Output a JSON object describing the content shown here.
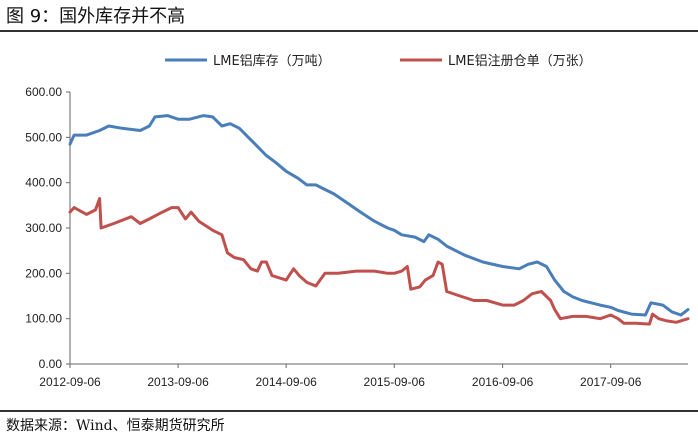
{
  "title": "图 9：国外库存并不高",
  "source": "数据来源：Wind、恒泰期货研究所",
  "chart_data": {
    "type": "line",
    "xlabel": "",
    "ylabel": "",
    "ylim": [
      0,
      600
    ],
    "yticks": [
      "0.00",
      "100.00",
      "200.00",
      "300.00",
      "400.00",
      "500.00",
      "600.00"
    ],
    "xticks": [
      "2012-09-06",
      "2013-09-06",
      "2014-09-06",
      "2015-09-06",
      "2016-09-06",
      "2017-09-06"
    ],
    "legend_position": "top",
    "grid": false,
    "series": [
      {
        "name": "LME铝库存（万吨）",
        "color": "#4a7ebb",
        "points": [
          [
            "2012-09-06",
            485
          ],
          [
            "2012-09-20",
            505
          ],
          [
            "2012-11-01",
            505
          ],
          [
            "2012-12-15",
            515
          ],
          [
            "2013-01-15",
            525
          ],
          [
            "2013-03-01",
            520
          ],
          [
            "2013-05-01",
            515
          ],
          [
            "2013-06-01",
            525
          ],
          [
            "2013-06-20",
            545
          ],
          [
            "2013-08-01",
            548
          ],
          [
            "2013-09-06",
            540
          ],
          [
            "2013-10-15",
            540
          ],
          [
            "2013-12-01",
            548
          ],
          [
            "2014-01-01",
            545
          ],
          [
            "2014-02-01",
            525
          ],
          [
            "2014-03-01",
            530
          ],
          [
            "2014-04-01",
            520
          ],
          [
            "2014-05-01",
            500
          ],
          [
            "2014-06-01",
            480
          ],
          [
            "2014-07-01",
            460
          ],
          [
            "2014-08-01",
            445
          ],
          [
            "2014-09-06",
            425
          ],
          [
            "2014-10-15",
            410
          ],
          [
            "2014-11-15",
            395
          ],
          [
            "2014-12-15",
            395
          ],
          [
            "2015-01-15",
            385
          ],
          [
            "2015-02-15",
            375
          ],
          [
            "2015-04-01",
            355
          ],
          [
            "2015-05-15",
            335
          ],
          [
            "2015-07-01",
            315
          ],
          [
            "2015-08-15",
            300
          ],
          [
            "2015-09-06",
            295
          ],
          [
            "2015-10-01",
            285
          ],
          [
            "2015-11-15",
            280
          ],
          [
            "2015-12-15",
            270
          ],
          [
            "2016-01-01",
            285
          ],
          [
            "2016-02-01",
            275
          ],
          [
            "2016-03-01",
            260
          ],
          [
            "2016-05-01",
            240
          ],
          [
            "2016-07-01",
            225
          ],
          [
            "2016-09-06",
            215
          ],
          [
            "2016-11-01",
            210
          ],
          [
            "2016-12-01",
            220
          ],
          [
            "2017-01-01",
            225
          ],
          [
            "2017-02-01",
            215
          ],
          [
            "2017-03-01",
            185
          ],
          [
            "2017-04-01",
            160
          ],
          [
            "2017-05-01",
            148
          ],
          [
            "2017-06-01",
            140
          ],
          [
            "2017-08-01",
            130
          ],
          [
            "2017-09-06",
            125
          ],
          [
            "2017-10-01",
            118
          ],
          [
            "2017-11-15",
            110
          ],
          [
            "2018-01-01",
            108
          ],
          [
            "2018-01-20",
            135
          ],
          [
            "2018-03-01",
            130
          ],
          [
            "2018-04-01",
            115
          ],
          [
            "2018-05-01",
            108
          ],
          [
            "2018-05-25",
            120
          ]
        ]
      },
      {
        "name": "LME铝注册仓单（万张）",
        "color": "#c0504d",
        "points": [
          [
            "2012-09-06",
            335
          ],
          [
            "2012-09-20",
            345
          ],
          [
            "2012-11-01",
            330
          ],
          [
            "2012-12-01",
            340
          ],
          [
            "2012-12-15",
            365
          ],
          [
            "2012-12-20",
            300
          ],
          [
            "2013-02-01",
            310
          ],
          [
            "2013-04-01",
            325
          ],
          [
            "2013-05-01",
            310
          ],
          [
            "2013-06-01",
            320
          ],
          [
            "2013-07-15",
            335
          ],
          [
            "2013-08-15",
            345
          ],
          [
            "2013-09-06",
            345
          ],
          [
            "2013-10-01",
            320
          ],
          [
            "2013-10-20",
            335
          ],
          [
            "2013-11-15",
            315
          ],
          [
            "2014-01-01",
            295
          ],
          [
            "2014-02-01",
            285
          ],
          [
            "2014-02-20",
            245
          ],
          [
            "2014-03-15",
            235
          ],
          [
            "2014-04-15",
            230
          ],
          [
            "2014-05-10",
            210
          ],
          [
            "2014-06-01",
            205
          ],
          [
            "2014-06-15",
            225
          ],
          [
            "2014-07-01",
            225
          ],
          [
            "2014-07-20",
            195
          ],
          [
            "2014-09-06",
            185
          ],
          [
            "2014-10-01",
            210
          ],
          [
            "2014-10-20",
            195
          ],
          [
            "2014-11-15",
            180
          ],
          [
            "2014-12-15",
            172
          ],
          [
            "2015-01-15",
            200
          ],
          [
            "2015-03-01",
            200
          ],
          [
            "2015-05-01",
            205
          ],
          [
            "2015-07-01",
            205
          ],
          [
            "2015-08-15",
            200
          ],
          [
            "2015-09-06",
            200
          ],
          [
            "2015-10-01",
            205
          ],
          [
            "2015-10-20",
            215
          ],
          [
            "2015-11-01",
            165
          ],
          [
            "2015-12-01",
            170
          ],
          [
            "2015-12-20",
            185
          ],
          [
            "2016-01-15",
            195
          ],
          [
            "2016-02-01",
            225
          ],
          [
            "2016-02-15",
            220
          ],
          [
            "2016-03-01",
            160
          ],
          [
            "2016-04-15",
            150
          ],
          [
            "2016-06-01",
            140
          ],
          [
            "2016-07-15",
            140
          ],
          [
            "2016-09-06",
            130
          ],
          [
            "2016-10-15",
            130
          ],
          [
            "2016-11-15",
            140
          ],
          [
            "2016-12-15",
            155
          ],
          [
            "2017-01-15",
            160
          ],
          [
            "2017-02-15",
            140
          ],
          [
            "2017-03-01",
            120
          ],
          [
            "2017-03-20",
            100
          ],
          [
            "2017-05-01",
            105
          ],
          [
            "2017-06-15",
            105
          ],
          [
            "2017-08-01",
            100
          ],
          [
            "2017-09-06",
            108
          ],
          [
            "2017-10-01",
            100
          ],
          [
            "2017-10-20",
            90
          ],
          [
            "2017-12-01",
            90
          ],
          [
            "2018-01-15",
            88
          ],
          [
            "2018-01-25",
            110
          ],
          [
            "2018-02-15",
            100
          ],
          [
            "2018-03-15",
            95
          ],
          [
            "2018-04-15",
            92
          ],
          [
            "2018-05-25",
            100
          ]
        ]
      }
    ]
  }
}
